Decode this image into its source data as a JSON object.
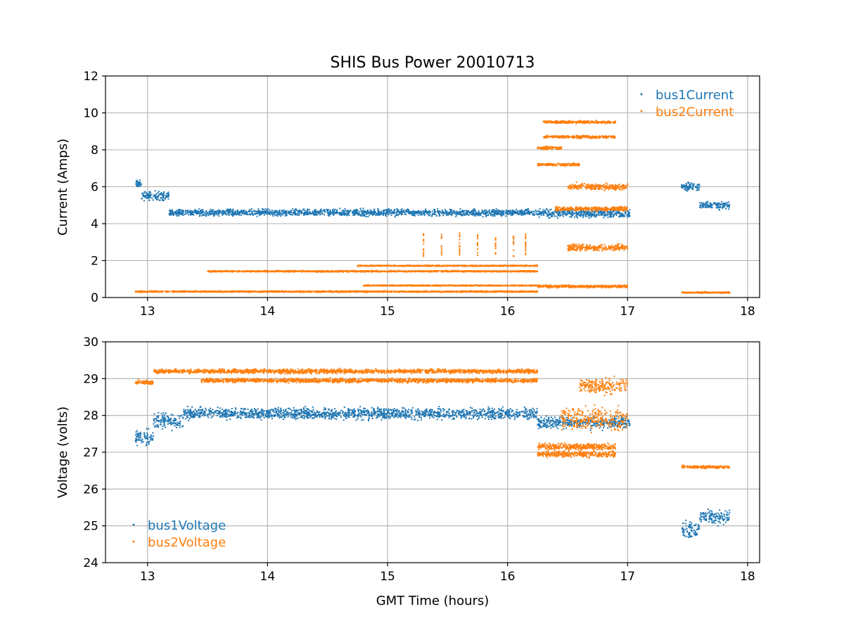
{
  "colors": {
    "bus1": "#1f77b4",
    "bus2": "#ff7f0e",
    "grid": "#b0b0b0"
  },
  "chart_data": [
    {
      "type": "scatter",
      "title": "SHIS Bus Power 20010713",
      "xlabel": "",
      "ylabel": "Current (Amps)",
      "xlim": [
        12.65,
        18.1
      ],
      "ylim": [
        0,
        12
      ],
      "xticks": [
        13,
        14,
        15,
        16,
        17,
        18
      ],
      "yticks": [
        0,
        2,
        4,
        6,
        8,
        10,
        12
      ],
      "xtick_labels": [
        "13",
        "14",
        "15",
        "16",
        "17",
        "18"
      ],
      "ytick_labels": [
        "0",
        "2",
        "4",
        "6",
        "8",
        "10",
        "12"
      ],
      "grid": true,
      "legend_position": "top-right",
      "series": [
        {
          "name": "bus1Current",
          "color": "#1f77b4",
          "segments": [
            {
              "x": [
                12.9,
                12.95
              ],
              "level": 6.15,
              "spread": 0.28
            },
            {
              "x": [
                12.95,
                13.18
              ],
              "level": 5.5,
              "spread": 0.35
            },
            {
              "x": [
                13.18,
                16.25
              ],
              "level": 4.6,
              "spread": 0.26
            },
            {
              "x": [
                16.25,
                17.02
              ],
              "level": 4.55,
              "spread": 0.32
            },
            {
              "x": [
                17.45,
                17.6
              ],
              "level": 6.0,
              "spread": 0.32
            },
            {
              "x": [
                17.6,
                17.85
              ],
              "level": 5.0,
              "spread": 0.3
            }
          ]
        },
        {
          "name": "bus2Current",
          "color": "#ff7f0e",
          "segments": [
            {
              "x": [
                12.9,
                16.25
              ],
              "level": 0.32,
              "spread": 0.05
            },
            {
              "x": [
                13.5,
                16.25
              ],
              "level": 1.42,
              "spread": 0.05
            },
            {
              "x": [
                14.75,
                16.25
              ],
              "level": 1.72,
              "spread": 0.04
            },
            {
              "x": [
                14.8,
                16.25
              ],
              "level": 0.65,
              "spread": 0.04
            },
            {
              "x": [
                16.25,
                17.0
              ],
              "level": 0.6,
              "spread": 0.1
            },
            {
              "x": [
                16.25,
                16.45
              ],
              "level": 8.1,
              "spread": 0.12
            },
            {
              "x": [
                16.25,
                16.6
              ],
              "level": 7.2,
              "spread": 0.1
            },
            {
              "x": [
                16.3,
                16.9
              ],
              "level": 9.5,
              "spread": 0.1
            },
            {
              "x": [
                16.3,
                16.9
              ],
              "level": 8.7,
              "spread": 0.1
            },
            {
              "x": [
                16.4,
                17.0
              ],
              "level": 4.8,
              "spread": 0.15
            },
            {
              "x": [
                16.5,
                17.0
              ],
              "level": 2.7,
              "spread": 0.25
            },
            {
              "x": [
                16.5,
                17.0
              ],
              "level": 6.0,
              "spread": 0.25
            },
            {
              "x": [
                17.45,
                17.85
              ],
              "level": 0.27,
              "spread": 0.05
            }
          ],
          "spikes": [
            15.3,
            15.45,
            15.6,
            15.75,
            15.9,
            16.05,
            16.15
          ],
          "spike_range": [
            2.2,
            3.5
          ]
        }
      ]
    },
    {
      "type": "scatter",
      "title": "",
      "xlabel": "GMT Time (hours)",
      "ylabel": "Voltage (volts)",
      "xlim": [
        12.65,
        18.1
      ],
      "ylim": [
        24,
        30
      ],
      "xticks": [
        13,
        14,
        15,
        16,
        17,
        18
      ],
      "yticks": [
        24,
        25,
        26,
        27,
        28,
        29,
        30
      ],
      "xtick_labels": [
        "13",
        "14",
        "15",
        "16",
        "17",
        "18"
      ],
      "ytick_labels": [
        "24",
        "25",
        "26",
        "27",
        "28",
        "29",
        "30"
      ],
      "grid": true,
      "legend_position": "bottom-left",
      "series": [
        {
          "name": "bus1Voltage",
          "color": "#1f77b4",
          "segments": [
            {
              "x": [
                12.9,
                13.05
              ],
              "level": 27.4,
              "spread": 0.3
            },
            {
              "x": [
                13.05,
                13.3
              ],
              "level": 27.85,
              "spread": 0.3
            },
            {
              "x": [
                13.3,
                16.25
              ],
              "level": 28.05,
              "spread": 0.22
            },
            {
              "x": [
                16.25,
                17.02
              ],
              "level": 27.8,
              "spread": 0.22
            },
            {
              "x": [
                17.45,
                17.6
              ],
              "level": 24.9,
              "spread": 0.35
            },
            {
              "x": [
                17.6,
                17.85
              ],
              "level": 25.25,
              "spread": 0.3
            }
          ]
        },
        {
          "name": "bus2Voltage",
          "color": "#ff7f0e",
          "segments": [
            {
              "x": [
                12.9,
                13.05
              ],
              "level": 28.9,
              "spread": 0.08
            },
            {
              "x": [
                13.05,
                16.25
              ],
              "level": 29.2,
              "spread": 0.08
            },
            {
              "x": [
                13.45,
                16.25
              ],
              "level": 28.95,
              "spread": 0.08
            },
            {
              "x": [
                16.25,
                16.9
              ],
              "level": 27.15,
              "spread": 0.12
            },
            {
              "x": [
                16.25,
                16.9
              ],
              "level": 26.95,
              "spread": 0.12
            },
            {
              "x": [
                16.45,
                17.0
              ],
              "level": 27.9,
              "spread": 0.45
            },
            {
              "x": [
                16.6,
                17.0
              ],
              "level": 28.8,
              "spread": 0.3
            },
            {
              "x": [
                17.45,
                17.85
              ],
              "level": 26.6,
              "spread": 0.05
            }
          ]
        }
      ]
    }
  ]
}
